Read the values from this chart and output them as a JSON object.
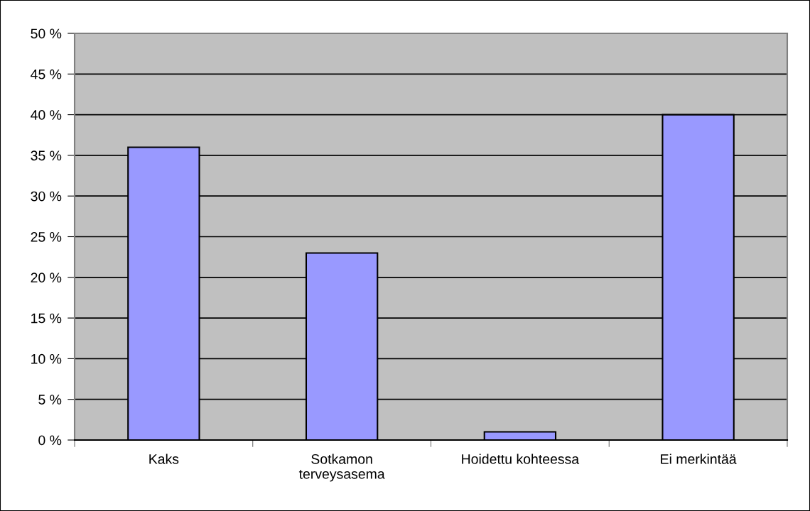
{
  "chart_data": {
    "type": "bar",
    "categories": [
      "Kaks",
      "Sotkamon\nterveysasema",
      "Hoidettu kohteessa",
      "Ei merkintää"
    ],
    "values": [
      36,
      23,
      1,
      40
    ],
    "color": "#9999ff",
    "ylim": [
      0,
      50
    ],
    "yticks": [
      {
        "value": 0,
        "label": "0 %"
      },
      {
        "value": 5,
        "label": "5 %"
      },
      {
        "value": 10,
        "label": "10 %"
      },
      {
        "value": 15,
        "label": "15 %"
      },
      {
        "value": 20,
        "label": "20 %"
      },
      {
        "value": 25,
        "label": "25 %"
      },
      {
        "value": 30,
        "label": "30 %"
      },
      {
        "value": 35,
        "label": "35 %"
      },
      {
        "value": 40,
        "label": "40 %"
      },
      {
        "value": 45,
        "label": "45 %"
      },
      {
        "value": 50,
        "label": "50 %"
      }
    ],
    "grid": "y"
  }
}
